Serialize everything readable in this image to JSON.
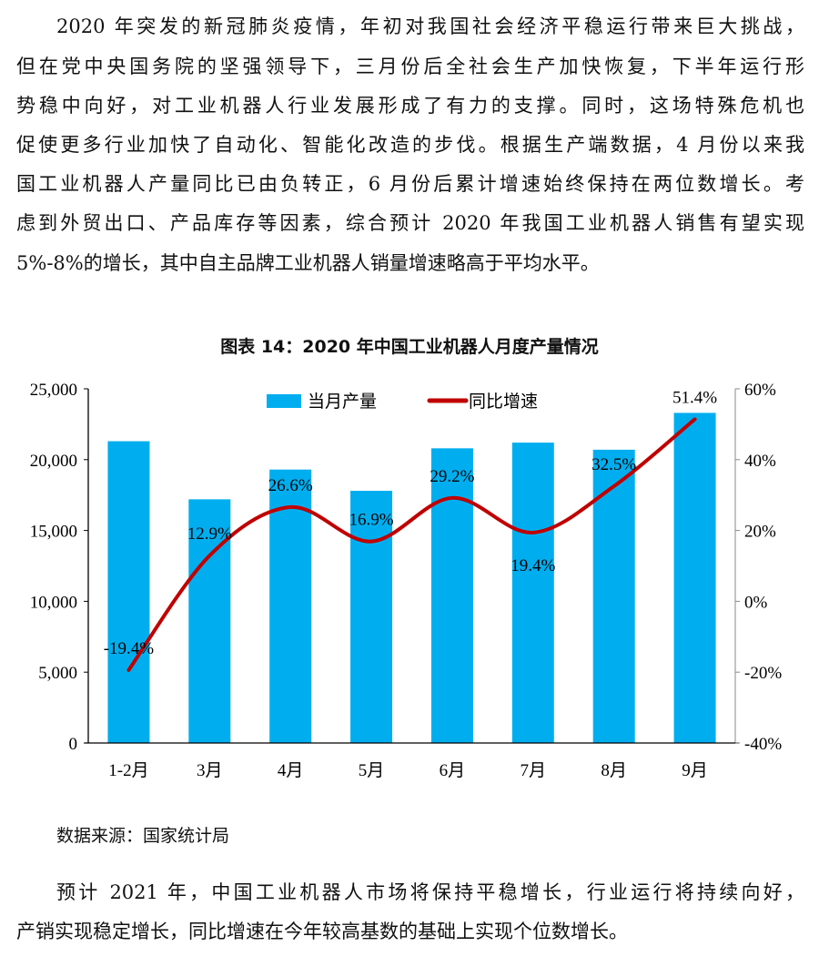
{
  "paragraph1": [
    "2020 年突发的新冠肺炎疫情，年初对我国社会经济平稳运行带来巨大挑战，",
    "但在党中央国务院的坚强领导下，三月份后全社会生产加快恢复，下半年运行形",
    "势稳中向好，对工业机器人行业发展形成了有力的支撑。同时，这场特殊危机也",
    "促使更多行业加快了自动化、智能化改造的步伐。根据生产端数据，4 月份以来我",
    "国工业机器人产量同比已由负转正，6 月份后累计增速始终保持在两位数增长。考",
    "虑到外贸出口、产品库存等因素，综合预计 2020 年我国工业机器人销售有望实现",
    "5%-8%的增长，其中自主品牌工业机器人销量增速略高于平均水平。"
  ],
  "source": "数据来源：国家统计局",
  "paragraph2": [
    "预计 2021 年，中国工业机器人市场将保持平稳增长，行业运行将持续向好，",
    "产销实现稳定增长，同比增速在今年较高基数的基础上实现个位数增长。"
  ],
  "chart_data": {
    "type": "bar+line",
    "title": "图表 14：2020 年中国工业机器人月度产量情况",
    "categories": [
      "1-2月",
      "3月",
      "4月",
      "5月",
      "6月",
      "7月",
      "8月",
      "9月"
    ],
    "series": [
      {
        "name": "当月产量",
        "type": "bar",
        "axis": "left",
        "color": "#00AEEF",
        "values": [
          21300,
          17200,
          19300,
          17800,
          20800,
          21200,
          20700,
          23300
        ]
      },
      {
        "name": "同比增速",
        "type": "line",
        "axis": "right",
        "color": "#C00000",
        "smooth": true,
        "values": [
          -19.4,
          12.9,
          26.6,
          16.9,
          29.2,
          19.4,
          32.5,
          51.4
        ],
        "labels": [
          "-19.4%",
          "12.9%",
          "26.6%",
          "16.9%",
          "29.2%",
          "19.4%",
          "32.5%",
          "51.4%"
        ]
      }
    ],
    "left_axis": {
      "range": [
        0,
        25000
      ],
      "ticks": [
        "0",
        "5,000",
        "10,000",
        "15,000",
        "20,000",
        "25,000"
      ]
    },
    "right_axis": {
      "range": [
        -40,
        60
      ],
      "ticks": [
        "-40%",
        "-20%",
        "0%",
        "20%",
        "40%",
        "60%"
      ]
    },
    "grid": false,
    "legend": "top-center"
  }
}
